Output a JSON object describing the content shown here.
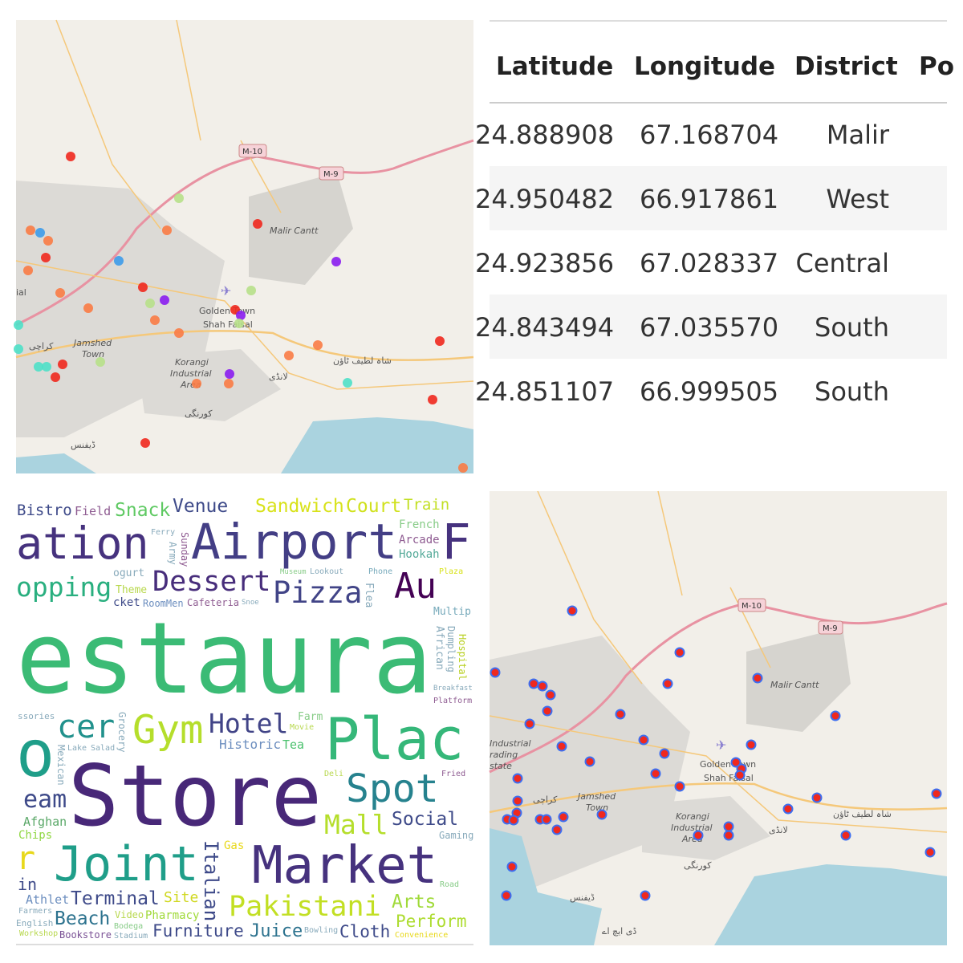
{
  "map1": {
    "labels": {
      "m10": "M-10",
      "m9": "M-9",
      "malir": "Malir Cantt",
      "golden": "Golden Town",
      "shah": "Shah Faisal",
      "karachi": "کراچی",
      "jamshed": "Jamshed",
      "town": "Town",
      "korangi": "Korangi",
      "industrial": "Industrial",
      "area": "Area",
      "shahlatif": "شاہ لطیف ٹاؤن",
      "landhi": "لانڈی",
      "korangi_ur": "کورنگی",
      "defence": "ڈیفنس",
      "ial": "ial"
    },
    "marker_colors": {
      "red": "#f0281e",
      "orange": "#f97b45",
      "blue": "#3d9bea",
      "purple": "#8a1cf0",
      "green": "#b7e08a",
      "cyan": "#4ee0c8"
    }
  },
  "table": {
    "columns": [
      "Latitude",
      "Longitude",
      "District",
      "Po"
    ],
    "rows": [
      [
        "24.888908",
        "67.168704",
        "Malir"
      ],
      [
        "24.950482",
        "66.917861",
        "West"
      ],
      [
        "24.923856",
        "67.028337",
        "Central"
      ],
      [
        "24.843494",
        "67.035570",
        "South"
      ],
      [
        "24.851107",
        "66.999505",
        "South"
      ]
    ]
  },
  "wordcloud": {
    "words": [
      "eam",
      "Field",
      "Snack",
      "Historic",
      "Sandwich",
      "Train",
      "Plaza",
      "Phone",
      "ogurt",
      "Cafeteria",
      "ation",
      "Airport",
      "F",
      "Convenience",
      "Court",
      "Au",
      "Ferry",
      "Lookout",
      "opping",
      "Dessert",
      "Pizza",
      "Venue",
      "Hookah",
      "Multip",
      "Snoe",
      "Museum",
      "estaura",
      "Theme",
      "Salad",
      "cket",
      "Italian",
      "Sunday",
      "Army",
      "African",
      "Dumpling",
      "Flea",
      "Hospital",
      "ssories",
      "RoomMen",
      "Social",
      "Farm",
      "Perform",
      "cer",
      "Gym",
      "Hotel",
      "Plac",
      "Breakfast",
      "Arcade",
      "Movie",
      "Terminal",
      "Lake",
      "Juice",
      "Workshop",
      "Mall",
      "Afghan",
      "Deli",
      "Fried",
      "Athlet",
      "Store",
      "Spot",
      "Bistro",
      "Chips",
      "Grocery",
      "Gas",
      "Mexican",
      "Tea",
      "Gaming",
      "Cloth",
      "Pharmacy",
      "Beach",
      "Furniture",
      "Platform",
      "Market",
      "Farmers",
      "Bodega",
      "Bowling",
      "Site",
      "Stadium",
      "English",
      "Joint",
      "Pakistani",
      "Arts",
      "in",
      "Bookstore",
      "French",
      "Video",
      "Road",
      "r",
      "o"
    ]
  },
  "map2": {
    "labels": {
      "m10": "M-10",
      "m9": "M-9",
      "malir": "Malir Cantt",
      "golden": "Golden Town",
      "shah": "Shah Faisal",
      "karachi": "کراچی",
      "jamshed": "Jamshed",
      "town": "Town",
      "korangi": "Korangi",
      "industrial": "Industrial",
      "area": "Area",
      "shahlatif": "شاہ لطیف ٹاؤن",
      "landhi": "لانڈی",
      "korangi_ur": "کورنگی",
      "defence": "ڈیفنس",
      "sitei": "Industrial",
      "sitet": "rading",
      "sites": "state",
      "dha": "ڈی ایچ اے"
    },
    "marker_fill": "#f0281e",
    "marker_stroke": "#3d6ef0"
  }
}
